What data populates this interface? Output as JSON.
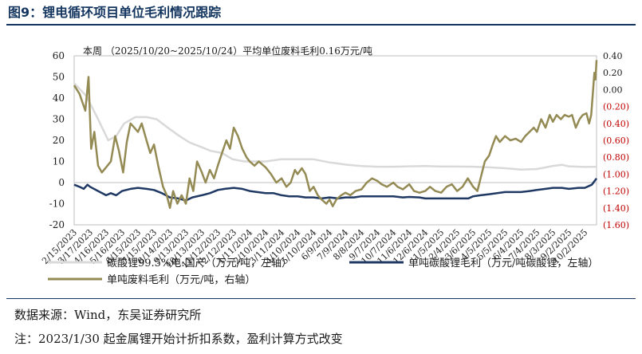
{
  "figure": {
    "title": "图9：锂电循环项目单位毛利情况跟踪",
    "source": "数据来源：Wind，东吴证券研究所",
    "note": "注：2023/1/30 起金属锂开始计折扣系数，盈利计算方式改变"
  },
  "chart_data": {
    "type": "line",
    "annotation": "本周 （2025/10/20~2025/10/24）平均单位废料毛利0.16万元/吨",
    "x_ticks": [
      "2/15/2023",
      "3/17/2023",
      "4/16/2023",
      "5/16/2023",
      "6/15/2023",
      "7/15/2023",
      "8/14/2023",
      "9/13/2023",
      "10/13/2023",
      "11/12/2023",
      "12/12/2023",
      "1/11/2024",
      "2/10/2024",
      "3/11/2024",
      "4/10/2024",
      "5/10/2024",
      "6/9/2024",
      "7/9/2024",
      "8/8/2024",
      "9/7/2024",
      "10/7/2024",
      "11/6/2024",
      "12/6/2024",
      "1/5/2025",
      "2/4/2025",
      "3/6/2025",
      "4/5/2025",
      "5/5/2025",
      "6/4/2025",
      "7/4/2025",
      "8/3/2025",
      "9/2/2025",
      "10/2/2025"
    ],
    "x_range": [
      "2023-02-15",
      "2025-10-24"
    ],
    "y_left": {
      "ylim": [
        -20,
        60
      ],
      "ticks": [
        -20,
        -10,
        0,
        10,
        20,
        30,
        40,
        50,
        60
      ]
    },
    "y_right": {
      "ylim": [
        -1.6,
        0.4
      ],
      "ticks": [
        "0.40",
        "0.20",
        "0.00",
        "(0.20)",
        "(0.40)",
        "(0.60)",
        "(0.80)",
        "(1.00)",
        "(1.20)",
        "(1.40)",
        "(1.60)"
      ]
    },
    "legend_position": "bottom",
    "series": [
      {
        "name": "碳酸锂99.5%电:国产（万元/吨，左轴）",
        "axis": "left",
        "color": "#d9d9d9",
        "points": [
          [
            "2023-02-15",
            47
          ],
          [
            "2023-03-10",
            41
          ],
          [
            "2023-04-01",
            30
          ],
          [
            "2023-04-20",
            20
          ],
          [
            "2023-05-05",
            22
          ],
          [
            "2023-05-20",
            28
          ],
          [
            "2023-06-10",
            31
          ],
          [
            "2023-07-01",
            31
          ],
          [
            "2023-07-20",
            30
          ],
          [
            "2023-08-10",
            26
          ],
          [
            "2023-09-01",
            22
          ],
          [
            "2023-09-20",
            19
          ],
          [
            "2023-10-10",
            17
          ],
          [
            "2023-10-30",
            15
          ],
          [
            "2023-11-20",
            14
          ],
          [
            "2023-12-10",
            11
          ],
          [
            "2024-01-01",
            10
          ],
          [
            "2024-01-20",
            10
          ],
          [
            "2024-02-10",
            10
          ],
          [
            "2024-03-10",
            11
          ],
          [
            "2024-04-10",
            11
          ],
          [
            "2024-05-10",
            11
          ],
          [
            "2024-06-10",
            9.5
          ],
          [
            "2024-07-10",
            8.5
          ],
          [
            "2024-08-08",
            7.8
          ],
          [
            "2024-09-07",
            7.5
          ],
          [
            "2024-10-07",
            7.5
          ],
          [
            "2024-11-06",
            7.7
          ],
          [
            "2024-12-06",
            7.8
          ],
          [
            "2025-01-05",
            7.6
          ],
          [
            "2025-02-04",
            7.6
          ],
          [
            "2025-03-06",
            7.5
          ],
          [
            "2025-04-05",
            7.2
          ],
          [
            "2025-05-05",
            6.8
          ],
          [
            "2025-06-04",
            6.1
          ],
          [
            "2025-07-04",
            6.4
          ],
          [
            "2025-08-03",
            7.9
          ],
          [
            "2025-08-20",
            8.4
          ],
          [
            "2025-09-02",
            7.7
          ],
          [
            "2025-10-02",
            7.4
          ],
          [
            "2025-10-24",
            7.5
          ]
        ]
      },
      {
        "name": "单吨碳酸锂毛利（万元/吨碳酸锂，左轴）",
        "axis": "left",
        "color": "#1f3864",
        "points": [
          [
            "2023-02-15",
            -1
          ],
          [
            "2023-02-25",
            -2
          ],
          [
            "2023-03-05",
            -3
          ],
          [
            "2023-03-12",
            -1
          ],
          [
            "2023-03-17",
            -2
          ],
          [
            "2023-04-01",
            -4
          ],
          [
            "2023-04-16",
            -6
          ],
          [
            "2023-04-25",
            -5
          ],
          [
            "2023-05-05",
            -6
          ],
          [
            "2023-05-16",
            -4
          ],
          [
            "2023-06-01",
            -3
          ],
          [
            "2023-06-15",
            -2.5
          ],
          [
            "2023-07-01",
            -3
          ],
          [
            "2023-07-15",
            -3.5
          ],
          [
            "2023-07-30",
            -5
          ],
          [
            "2023-08-14",
            -7
          ],
          [
            "2023-08-30",
            -7.5
          ],
          [
            "2023-09-13",
            -8.5
          ],
          [
            "2023-09-25",
            -7
          ],
          [
            "2023-10-13",
            -6
          ],
          [
            "2023-10-28",
            -5
          ],
          [
            "2023-11-12",
            -3.5
          ],
          [
            "2023-11-25",
            -3
          ],
          [
            "2023-12-12",
            -2.5
          ],
          [
            "2023-12-28",
            -3
          ],
          [
            "2024-01-11",
            -4
          ],
          [
            "2024-01-25",
            -4.5
          ],
          [
            "2024-02-10",
            -5
          ],
          [
            "2024-02-25",
            -5
          ],
          [
            "2024-03-11",
            -6
          ],
          [
            "2024-03-25",
            -6.5
          ],
          [
            "2024-04-10",
            -6.5
          ],
          [
            "2024-04-25",
            -7
          ],
          [
            "2024-05-10",
            -7
          ],
          [
            "2024-05-25",
            -7.5
          ],
          [
            "2024-06-09",
            -7
          ],
          [
            "2024-06-25",
            -7.5
          ],
          [
            "2024-07-09",
            -7
          ],
          [
            "2024-07-25",
            -7
          ],
          [
            "2024-08-08",
            -6.5
          ],
          [
            "2024-08-25",
            -6.5
          ],
          [
            "2024-09-07",
            -6.5
          ],
          [
            "2024-09-25",
            -6.5
          ],
          [
            "2024-10-07",
            -6.5
          ],
          [
            "2024-10-25",
            -7
          ],
          [
            "2024-11-06",
            -6.8
          ],
          [
            "2024-11-25",
            -7
          ],
          [
            "2024-12-06",
            -7.5
          ],
          [
            "2024-12-25",
            -7.5
          ],
          [
            "2025-01-05",
            -7.5
          ],
          [
            "2025-01-25",
            -7.5
          ],
          [
            "2025-02-04",
            -7.5
          ],
          [
            "2025-02-25",
            -7.5
          ],
          [
            "2025-03-06",
            -6.5
          ],
          [
            "2025-03-20",
            -6
          ],
          [
            "2025-04-05",
            -5.5
          ],
          [
            "2025-04-20",
            -5
          ],
          [
            "2025-05-05",
            -4.5
          ],
          [
            "2025-05-20",
            -4.5
          ],
          [
            "2025-06-04",
            -4.5
          ],
          [
            "2025-06-20",
            -4
          ],
          [
            "2025-07-04",
            -3.5
          ],
          [
            "2025-07-20",
            -3
          ],
          [
            "2025-08-03",
            -2.5
          ],
          [
            "2025-08-20",
            -2.5
          ],
          [
            "2025-09-02",
            -3
          ],
          [
            "2025-09-20",
            -2.5
          ],
          [
            "2025-10-02",
            -2.5
          ],
          [
            "2025-10-15",
            -1
          ],
          [
            "2025-10-24",
            2
          ]
        ]
      },
      {
        "name": "单吨废料毛利（万元/吨，右轴）",
        "axis": "right",
        "color": "#948a54",
        "points": [
          [
            "2023-02-15",
            0.05
          ],
          [
            "2023-02-25",
            -0.05
          ],
          [
            "2023-03-08",
            -0.25
          ],
          [
            "2023-03-14",
            0.15
          ],
          [
            "2023-03-19",
            -0.7
          ],
          [
            "2023-03-25",
            -0.5
          ],
          [
            "2023-04-01",
            -0.9
          ],
          [
            "2023-04-08",
            -0.98
          ],
          [
            "2023-04-16",
            -0.92
          ],
          [
            "2023-04-25",
            -0.85
          ],
          [
            "2023-05-03",
            -0.55
          ],
          [
            "2023-05-10",
            -0.72
          ],
          [
            "2023-05-18",
            -0.98
          ],
          [
            "2023-05-25",
            -0.62
          ],
          [
            "2023-06-01",
            -0.4
          ],
          [
            "2023-06-08",
            -0.45
          ],
          [
            "2023-06-15",
            -0.5
          ],
          [
            "2023-06-22",
            -0.4
          ],
          [
            "2023-07-01",
            -0.6
          ],
          [
            "2023-07-08",
            -0.75
          ],
          [
            "2023-07-15",
            -0.65
          ],
          [
            "2023-07-23",
            -0.9
          ],
          [
            "2023-08-01",
            -1.15
          ],
          [
            "2023-08-08",
            -1.25
          ],
          [
            "2023-08-14",
            -1.4
          ],
          [
            "2023-08-20",
            -1.2
          ],
          [
            "2023-08-28",
            -1.35
          ],
          [
            "2023-09-05",
            -1.25
          ],
          [
            "2023-09-13",
            -1.35
          ],
          [
            "2023-09-20",
            -1.05
          ],
          [
            "2023-09-27",
            -1.2
          ],
          [
            "2023-10-04",
            -0.85
          ],
          [
            "2023-10-13",
            -0.98
          ],
          [
            "2023-10-20",
            -1.1
          ],
          [
            "2023-10-28",
            -0.95
          ],
          [
            "2023-11-05",
            -1.05
          ],
          [
            "2023-11-12",
            -0.9
          ],
          [
            "2023-11-20",
            -0.75
          ],
          [
            "2023-11-28",
            -0.6
          ],
          [
            "2023-12-05",
            -0.7
          ],
          [
            "2023-12-12",
            -0.45
          ],
          [
            "2023-12-20",
            -0.55
          ],
          [
            "2023-12-28",
            -0.7
          ],
          [
            "2024-01-05",
            -0.8
          ],
          [
            "2024-01-11",
            -0.85
          ],
          [
            "2024-01-20",
            -0.9
          ],
          [
            "2024-01-28",
            -0.85
          ],
          [
            "2024-02-10",
            -0.92
          ],
          [
            "2024-02-20",
            -1.0
          ],
          [
            "2024-03-01",
            -1.1
          ],
          [
            "2024-03-11",
            -1.05
          ],
          [
            "2024-03-20",
            -1.15
          ],
          [
            "2024-03-28",
            -1.1
          ],
          [
            "2024-04-05",
            -0.95
          ],
          [
            "2024-04-10",
            -1.0
          ],
          [
            "2024-04-18",
            -0.93
          ],
          [
            "2024-04-25",
            -1.0
          ],
          [
            "2024-05-03",
            -1.2
          ],
          [
            "2024-05-10",
            -1.15
          ],
          [
            "2024-05-18",
            -1.25
          ],
          [
            "2024-05-25",
            -1.3
          ],
          [
            "2024-06-03",
            -1.35
          ],
          [
            "2024-06-09",
            -1.3
          ],
          [
            "2024-06-15",
            -1.38
          ],
          [
            "2024-06-22",
            -1.3
          ],
          [
            "2024-07-01",
            -1.25
          ],
          [
            "2024-07-09",
            -1.22
          ],
          [
            "2024-07-18",
            -1.25
          ],
          [
            "2024-07-28",
            -1.2
          ],
          [
            "2024-08-08",
            -1.18
          ],
          [
            "2024-08-18",
            -1.1
          ],
          [
            "2024-08-28",
            -1.05
          ],
          [
            "2024-09-07",
            -1.08
          ],
          [
            "2024-09-15",
            -1.12
          ],
          [
            "2024-09-25",
            -1.15
          ],
          [
            "2024-10-07",
            -1.1
          ],
          [
            "2024-10-15",
            -1.15
          ],
          [
            "2024-10-25",
            -1.18
          ],
          [
            "2024-11-06",
            -1.12
          ],
          [
            "2024-11-15",
            -1.2
          ],
          [
            "2024-11-25",
            -1.22
          ],
          [
            "2024-12-06",
            -1.2
          ],
          [
            "2024-12-15",
            -1.15
          ],
          [
            "2024-12-25",
            -1.2
          ],
          [
            "2025-01-05",
            -1.22
          ],
          [
            "2025-01-15",
            -1.15
          ],
          [
            "2025-01-25",
            -1.12
          ],
          [
            "2025-02-04",
            -1.2
          ],
          [
            "2025-02-14",
            -1.15
          ],
          [
            "2025-02-24",
            -1.05
          ],
          [
            "2025-03-06",
            -1.15
          ],
          [
            "2025-03-14",
            -1.2
          ],
          [
            "2025-03-22",
            -1.0
          ],
          [
            "2025-03-28",
            -0.85
          ],
          [
            "2025-04-05",
            -0.78
          ],
          [
            "2025-04-12",
            -0.65
          ],
          [
            "2025-04-18",
            -0.55
          ],
          [
            "2025-04-25",
            -0.62
          ],
          [
            "2025-05-05",
            -0.55
          ],
          [
            "2025-05-15",
            -0.6
          ],
          [
            "2025-05-25",
            -0.58
          ],
          [
            "2025-06-04",
            -0.62
          ],
          [
            "2025-06-12",
            -0.55
          ],
          [
            "2025-06-20",
            -0.5
          ],
          [
            "2025-06-28",
            -0.45
          ],
          [
            "2025-07-04",
            -0.5
          ],
          [
            "2025-07-12",
            -0.35
          ],
          [
            "2025-07-20",
            -0.45
          ],
          [
            "2025-07-28",
            -0.3
          ],
          [
            "2025-08-03",
            -0.38
          ],
          [
            "2025-08-10",
            -0.3
          ],
          [
            "2025-08-18",
            -0.35
          ],
          [
            "2025-08-25",
            -0.3
          ],
          [
            "2025-09-02",
            -0.32
          ],
          [
            "2025-09-08",
            -0.3
          ],
          [
            "2025-09-15",
            -0.45
          ],
          [
            "2025-09-22",
            -0.35
          ],
          [
            "2025-09-28",
            -0.3
          ],
          [
            "2025-10-05",
            -0.28
          ],
          [
            "2025-10-10",
            -0.4
          ],
          [
            "2025-10-14",
            -0.3
          ],
          [
            "2025-10-17",
            -0.05
          ],
          [
            "2025-10-20",
            0.2
          ],
          [
            "2025-10-22",
            0.12
          ],
          [
            "2025-10-24",
            0.35
          ]
        ]
      }
    ]
  }
}
